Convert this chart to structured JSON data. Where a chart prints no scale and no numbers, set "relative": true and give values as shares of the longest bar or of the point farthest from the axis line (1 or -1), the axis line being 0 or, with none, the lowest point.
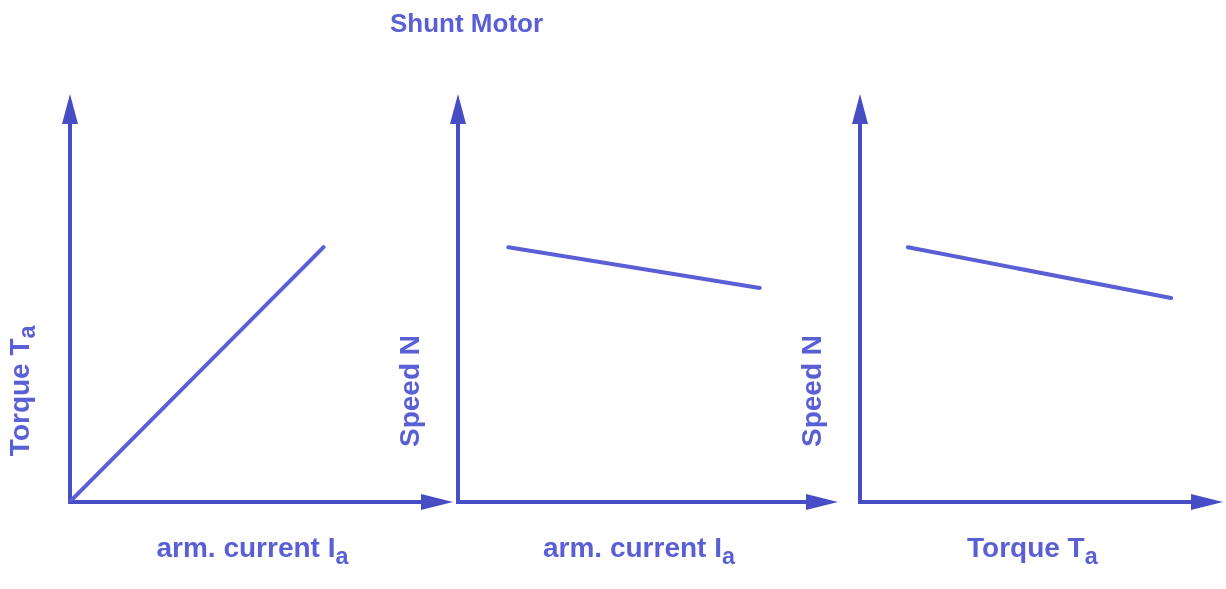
{
  "chart_data": [
    {
      "type": "line",
      "title": "Shunt Motor",
      "relative": true,
      "xlabel": "arm. current I$_{a}$",
      "ylabel": "Torque T$_{a}$",
      "categories": [
        null,
        null,
        null,
        null,
        null,
        null,
        null,
        null
      ],
      "series": [
        {
          "color": "#5a5fd6",
          "values": [
            0,
            null,
            null,
            null,
            null,
            1,
            null,
            null
          ]
        }
      ],
      "grid": false,
      "legend": false,
      "marker": "none",
      "line_style": "solid"
    },
    {
      "type": "line",
      "relative": true,
      "xlabel": "arm. current I$_{a}$",
      "ylabel": "Speed N",
      "categories": [
        null,
        null,
        null,
        null,
        null,
        null,
        null,
        null
      ],
      "series": [
        {
          "color": "#5a5fd6",
          "values": [
            null,
            1,
            null,
            null,
            null,
            null,
            0.84,
            null
          ]
        }
      ],
      "grid": false,
      "legend": false,
      "marker": "none",
      "line_style": "solid"
    },
    {
      "type": "line",
      "relative": true,
      "xlabel": "Torque T$_{a}$",
      "ylabel": "Speed N",
      "categories": [
        null,
        null,
        null,
        null,
        null,
        null,
        null,
        null,
        null,
        null,
        null,
        null,
        null,
        null,
        null
      ],
      "series": [
        {
          "color": "#5a5fd6",
          "values": [
            null,
            null,
            1,
            null,
            null,
            null,
            null,
            null,
            null,
            null,
            null,
            null,
            null,
            0.8,
            null
          ]
        }
      ],
      "grid": false,
      "legend": false,
      "marker": "none",
      "line_style": "solid"
    }
  ]
}
